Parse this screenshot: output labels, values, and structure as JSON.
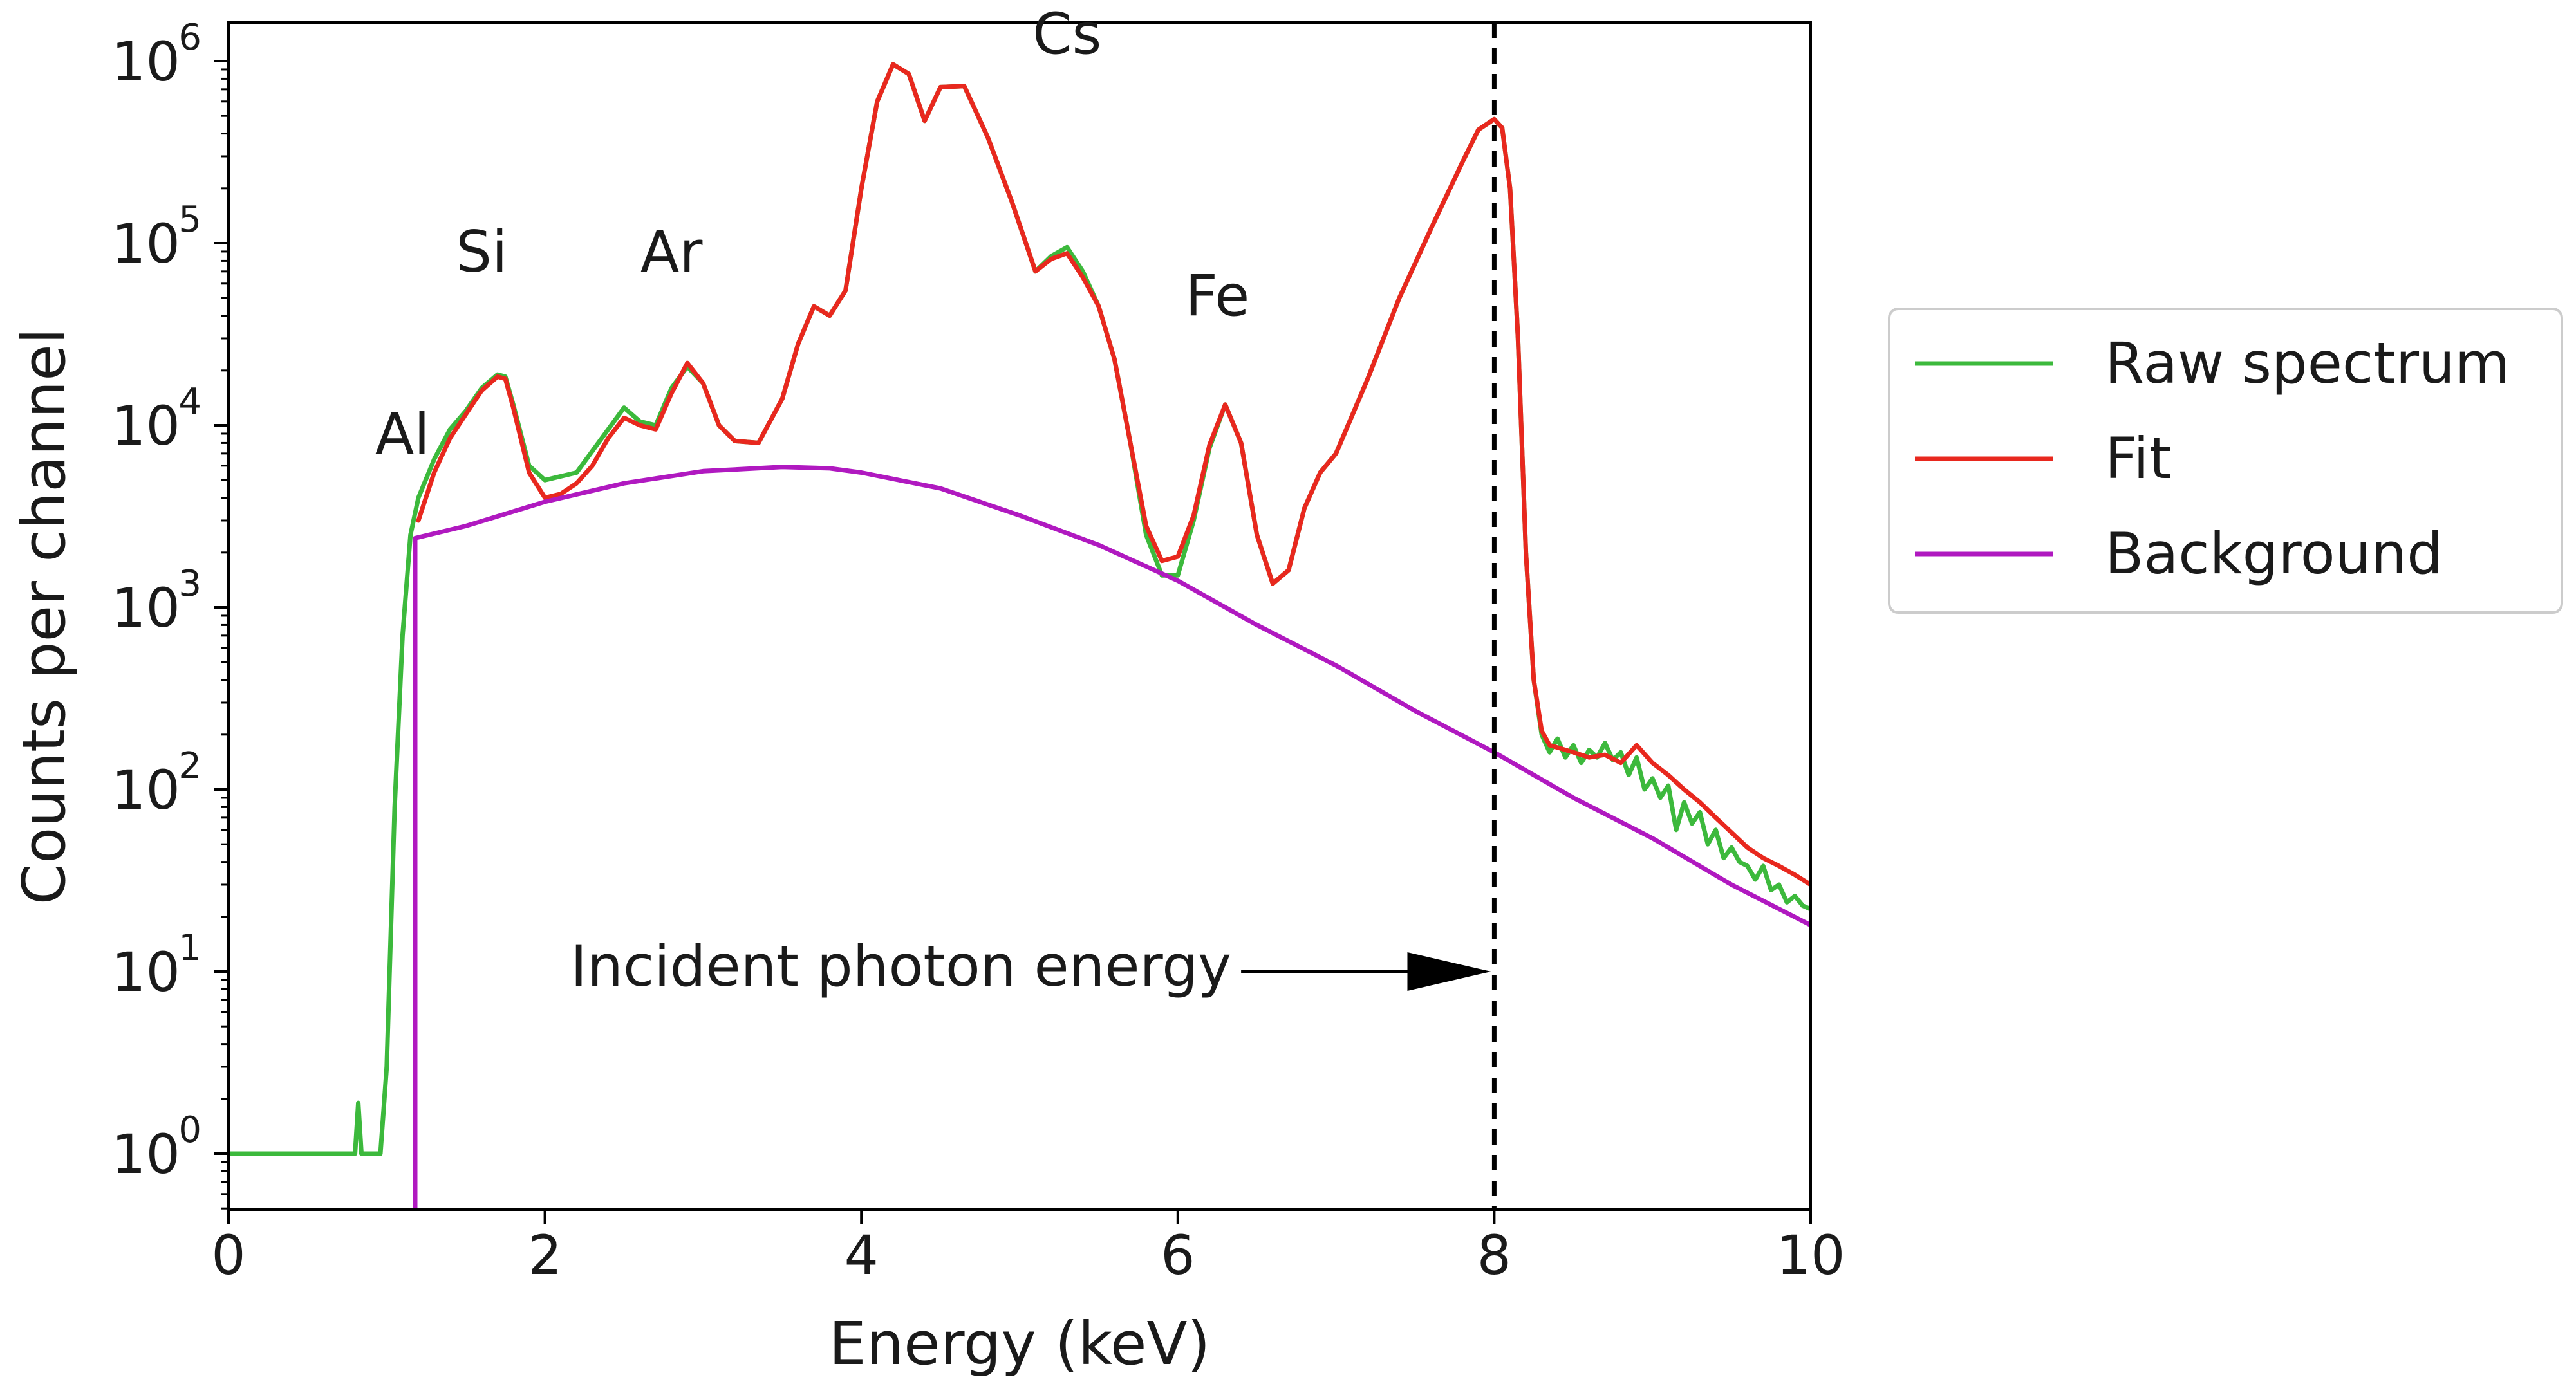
{
  "chart_data": {
    "type": "line",
    "title": "",
    "xlabel": "Energy (keV)",
    "ylabel": "Counts per channel",
    "xlim": [
      0,
      10
    ],
    "ylim": [
      0.5,
      2000000
    ],
    "yscale": "log",
    "grid": false,
    "legend_position": "right",
    "x_ticks": [
      0,
      2,
      4,
      6,
      8,
      10
    ],
    "x_tick_labels": [
      "0",
      "2",
      "4",
      "6",
      "8",
      "10"
    ],
    "y_ticks": [
      1,
      10,
      100,
      1000,
      10000,
      100000,
      1000000
    ],
    "y_tick_labels": [
      {
        "base": "10",
        "exp": "0"
      },
      {
        "base": "10",
        "exp": "1"
      },
      {
        "base": "10",
        "exp": "2"
      },
      {
        "base": "10",
        "exp": "3"
      },
      {
        "base": "10",
        "exp": "4"
      },
      {
        "base": "10",
        "exp": "5"
      },
      {
        "base": "10",
        "exp": "6"
      }
    ],
    "series": [
      {
        "name": "Raw spectrum",
        "color": "#3cb93c",
        "x": [
          0,
          0.8,
          0.82,
          0.84,
          0.86,
          0.9,
          0.94,
          0.96,
          1.0,
          1.05,
          1.1,
          1.15,
          1.2,
          1.3,
          1.4,
          1.5,
          1.6,
          1.7,
          1.75,
          1.8,
          1.9,
          2.0,
          2.2,
          2.4,
          2.5,
          2.6,
          2.7,
          2.8,
          2.9,
          3.0,
          3.1,
          3.2,
          3.35,
          3.5,
          3.6,
          3.7,
          3.8,
          3.9,
          4.0,
          4.1,
          4.2,
          4.3,
          4.4,
          4.5,
          4.65,
          4.8,
          4.95,
          5.1,
          5.2,
          5.3,
          5.4,
          5.5,
          5.6,
          5.7,
          5.8,
          5.9,
          6.0,
          6.1,
          6.2,
          6.3,
          6.4,
          6.5,
          6.6,
          6.7,
          6.8,
          6.9,
          7.0,
          7.2,
          7.4,
          7.6,
          7.8,
          7.9,
          8.0,
          8.05,
          8.1,
          8.15,
          8.2,
          8.25,
          8.3,
          8.35,
          8.4,
          8.45,
          8.5,
          8.55,
          8.6,
          8.65,
          8.7,
          8.75,
          8.8,
          8.85,
          8.9,
          8.95,
          9.0,
          9.05,
          9.1,
          9.15,
          9.2,
          9.25,
          9.3,
          9.35,
          9.4,
          9.45,
          9.5,
          9.55,
          9.6,
          9.65,
          9.7,
          9.75,
          9.8,
          9.85,
          9.9,
          9.95,
          10.0
        ],
        "values": [
          1.0,
          1.0,
          1.9,
          1.0,
          1.0,
          1.0,
          1.0,
          1.0,
          3,
          80,
          700,
          2500,
          4000,
          6500,
          9500,
          12000,
          16000,
          19000,
          18500,
          13000,
          6000,
          5000,
          5500,
          9500,
          12500,
          10500,
          10000,
          16000,
          21000,
          17000,
          10000,
          8200,
          8000,
          14000,
          28000,
          45000,
          40000,
          55000,
          200000,
          600000,
          960000,
          850000,
          470000,
          720000,
          730000,
          380000,
          170000,
          70000,
          85000,
          95000,
          70000,
          45000,
          23000,
          8000,
          2500,
          1500,
          1500,
          3000,
          7500,
          13000,
          8000,
          2500,
          1350,
          1600,
          3500,
          5500,
          7000,
          18000,
          50000,
          120000,
          280000,
          420000,
          480000,
          430000,
          200000,
          30000,
          2000,
          400,
          200,
          160,
          190,
          150,
          175,
          140,
          165,
          150,
          180,
          145,
          160,
          120,
          150,
          100,
          115,
          90,
          105,
          60,
          85,
          65,
          75,
          50,
          60,
          42,
          48,
          40,
          38,
          32,
          38,
          28,
          30,
          24,
          26,
          23,
          22
        ]
      },
      {
        "name": "Fit",
        "color": "#e8281e",
        "x": [
          1.2,
          1.3,
          1.4,
          1.5,
          1.6,
          1.7,
          1.75,
          1.8,
          1.9,
          2.0,
          2.1,
          2.2,
          2.3,
          2.4,
          2.5,
          2.6,
          2.7,
          2.8,
          2.9,
          3.0,
          3.1,
          3.2,
          3.35,
          3.5,
          3.6,
          3.7,
          3.8,
          3.9,
          4.0,
          4.1,
          4.2,
          4.3,
          4.4,
          4.5,
          4.65,
          4.8,
          4.95,
          5.1,
          5.2,
          5.3,
          5.4,
          5.5,
          5.6,
          5.7,
          5.8,
          5.9,
          6.0,
          6.1,
          6.2,
          6.3,
          6.4,
          6.5,
          6.6,
          6.7,
          6.8,
          6.9,
          7.0,
          7.2,
          7.4,
          7.6,
          7.8,
          7.9,
          8.0,
          8.05,
          8.1,
          8.15,
          8.2,
          8.25,
          8.3,
          8.35,
          8.4,
          8.5,
          8.6,
          8.7,
          8.8,
          8.9,
          9.0,
          9.1,
          9.2,
          9.3,
          9.4,
          9.5,
          9.6,
          9.7,
          9.8,
          9.9,
          10.0
        ],
        "values": [
          3000,
          5500,
          8500,
          11500,
          15500,
          18500,
          18000,
          12500,
          5500,
          4000,
          4200,
          4800,
          6000,
          8500,
          11000,
          10000,
          9500,
          15000,
          22000,
          17000,
          10000,
          8200,
          8000,
          14000,
          28000,
          45000,
          40000,
          55000,
          200000,
          600000,
          960000,
          850000,
          470000,
          720000,
          730000,
          380000,
          170000,
          70000,
          82000,
          88000,
          65000,
          45000,
          23000,
          8000,
          2800,
          1800,
          1900,
          3200,
          7800,
          13000,
          8000,
          2500,
          1350,
          1600,
          3500,
          5500,
          7000,
          18000,
          50000,
          120000,
          280000,
          420000,
          480000,
          430000,
          200000,
          30000,
          2000,
          400,
          210,
          175,
          170,
          160,
          150,
          155,
          140,
          175,
          140,
          120,
          100,
          85,
          70,
          58,
          48,
          42,
          38,
          34,
          30
        ]
      },
      {
        "name": "Background",
        "color": "#b019c0",
        "x": [
          1.18,
          1.18,
          1.5,
          2.0,
          2.5,
          3.0,
          3.5,
          3.8,
          4.0,
          4.5,
          5.0,
          5.5,
          6.0,
          6.5,
          7.0,
          7.5,
          8.0,
          8.5,
          9.0,
          9.5,
          10.0
        ],
        "values": [
          0.5,
          2400,
          2800,
          3800,
          4800,
          5600,
          5900,
          5800,
          5500,
          4500,
          3200,
          2200,
          1400,
          800,
          480,
          270,
          160,
          90,
          54,
          30,
          18
        ]
      }
    ],
    "reference_line": {
      "x": 8.0,
      "style": "dashed",
      "color": "#000000"
    },
    "peak_labels": [
      {
        "text": "Al",
        "x": 1.1,
        "y": 7000
      },
      {
        "text": "Si",
        "x": 1.6,
        "y": 70000
      },
      {
        "text": "Ar",
        "x": 2.8,
        "y": 70000
      },
      {
        "text": "Cs",
        "x": 5.3,
        "y": 1100000
      },
      {
        "text": "Fe",
        "x": 6.25,
        "y": 40000
      }
    ],
    "annotation": {
      "text": "Incident photon energy",
      "arrow_from_x": 6.4,
      "arrow_to_x": 7.98,
      "y": 10
    }
  }
}
